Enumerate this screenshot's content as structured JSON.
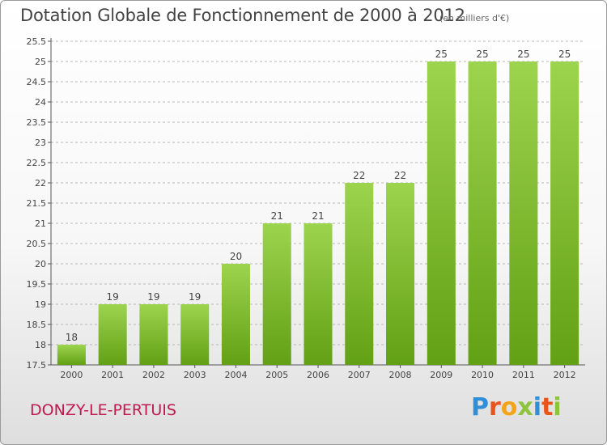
{
  "title": "Dotation Globale de Fonctionnement de 2000 à 2012",
  "subtitle": "(en milliers d'€)",
  "location": "DONZY-LE-PERTUIS",
  "brand": {
    "letters": [
      "P",
      "r",
      "o",
      "x",
      "i",
      "t",
      "i"
    ],
    "colors": [
      "#2f8fd8",
      "#e8541a",
      "#f2a51a",
      "#8cc43c",
      "#2f8fd8",
      "#e8541a",
      "#8cc43c"
    ]
  },
  "colors": {
    "bar_top": "#9dd44e",
    "bar_bottom": "#62a015",
    "grid": "#b8b8b8",
    "title": "#444444",
    "location": "#c0184f"
  },
  "chart_data": {
    "type": "bar",
    "categories": [
      "2000",
      "2001",
      "2002",
      "2003",
      "2004",
      "2005",
      "2006",
      "2007",
      "2008",
      "2009",
      "2010",
      "2011",
      "2012"
    ],
    "values": [
      18,
      19,
      19,
      19,
      20,
      21,
      21,
      22,
      22,
      25,
      25,
      25,
      25
    ],
    "title": "Dotation Globale de Fonctionnement de 2000 à 2012",
    "unit": "(en milliers d'€)",
    "ylim": [
      17.5,
      25.5
    ],
    "yticks": [
      "17.5",
      "18",
      "18.5",
      "19",
      "19.5",
      "20",
      "20.5",
      "21",
      "21.5",
      "22",
      "22.5",
      "23",
      "23.5",
      "24",
      "24.5",
      "25",
      "25.5"
    ],
    "grid": true,
    "grid_style": "dashed horizontal",
    "legend": "none"
  }
}
